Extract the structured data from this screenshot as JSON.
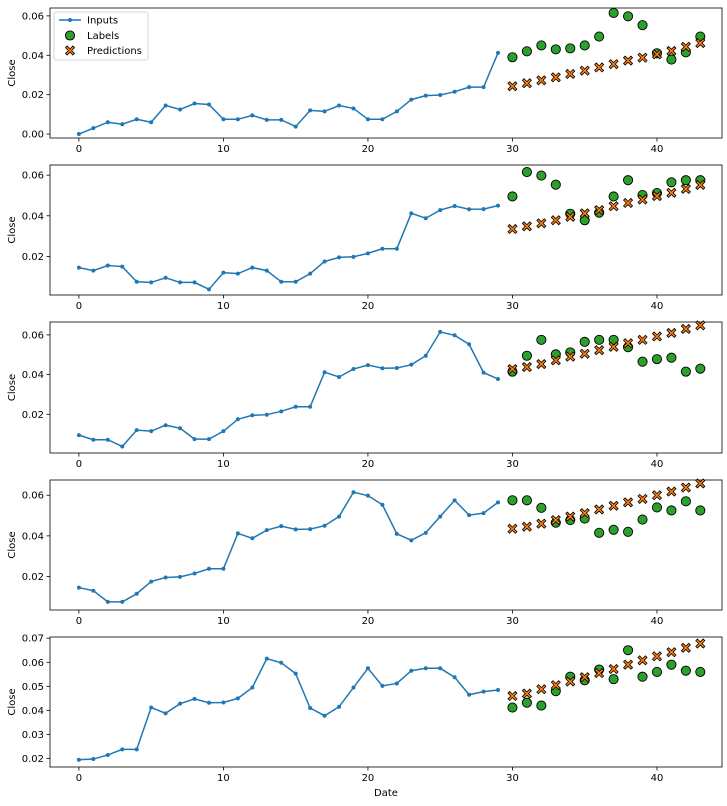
{
  "chart_data": [
    {
      "type": "scatter",
      "xlabel": "",
      "ylabel": "Close",
      "xlim": [
        -2,
        44.5
      ],
      "ylim": [
        -0.002,
        0.064
      ],
      "xticks": [
        0,
        10,
        20,
        30,
        40
      ],
      "yticks": [
        0.0,
        0.02,
        0.04,
        0.06
      ],
      "ytick_labels": [
        "0.00",
        "0.02",
        "0.04",
        "0.06"
      ],
      "legend_placement": "top-left",
      "legend": [
        "Inputs",
        "Labels",
        "Predictions"
      ],
      "series": [
        {
          "name": "Inputs",
          "x": [
            0,
            1,
            2,
            3,
            4,
            5,
            6,
            7,
            8,
            9,
            10,
            11,
            12,
            13,
            14,
            15,
            16,
            17,
            18,
            19,
            20,
            21,
            22,
            23,
            24,
            25,
            26,
            27,
            28,
            29
          ],
          "values": [
            0.0,
            0.003,
            0.006,
            0.005,
            0.0075,
            0.006,
            0.0145,
            0.0125,
            0.0155,
            0.015,
            0.0075,
            0.0075,
            0.0095,
            0.0072,
            0.0072,
            0.0038,
            0.012,
            0.0115,
            0.0145,
            0.013,
            0.0075,
            0.0075,
            0.0115,
            0.0175,
            0.0195,
            0.0198,
            0.0215,
            0.0238,
            0.0238,
            0.0412
          ]
        },
        {
          "name": "Labels",
          "x": [
            30,
            31,
            32,
            33,
            34,
            35,
            36,
            37,
            38,
            39,
            40,
            41,
            42,
            43
          ],
          "values": [
            0.039,
            0.042,
            0.045,
            0.043,
            0.0435,
            0.045,
            0.0495,
            0.0615,
            0.0598,
            0.0553,
            0.041,
            0.0378,
            0.0415,
            0.0495
          ]
        },
        {
          "name": "Predictions",
          "x": [
            30,
            31,
            32,
            33,
            34,
            35,
            36,
            37,
            38,
            39,
            40,
            41,
            42,
            43
          ],
          "values": [
            0.0243,
            0.0258,
            0.0273,
            0.0288,
            0.0305,
            0.0322,
            0.0338,
            0.0355,
            0.0373,
            0.0388,
            0.0405,
            0.0422,
            0.0443,
            0.0462
          ]
        }
      ]
    },
    {
      "type": "scatter",
      "xlabel": "",
      "ylabel": "Close",
      "xlim": [
        -2,
        44.5
      ],
      "ylim": [
        0.001,
        0.065
      ],
      "xticks": [
        0,
        10,
        20,
        30,
        40
      ],
      "yticks": [
        0.02,
        0.04,
        0.06
      ],
      "ytick_labels": [
        "0.02",
        "0.04",
        "0.06"
      ],
      "series": [
        {
          "name": "Inputs",
          "x": [
            0,
            1,
            2,
            3,
            4,
            5,
            6,
            7,
            8,
            9,
            10,
            11,
            12,
            13,
            14,
            15,
            16,
            17,
            18,
            19,
            20,
            21,
            22,
            23,
            24,
            25,
            26,
            27,
            28,
            29
          ],
          "values": [
            0.0145,
            0.013,
            0.0155,
            0.015,
            0.0075,
            0.0072,
            0.0095,
            0.0072,
            0.0072,
            0.0038,
            0.012,
            0.0115,
            0.0145,
            0.013,
            0.0075,
            0.0075,
            0.0115,
            0.0175,
            0.0195,
            0.0198,
            0.0215,
            0.0238,
            0.0238,
            0.0412,
            0.0388,
            0.0428,
            0.0448,
            0.0432,
            0.0433,
            0.045
          ]
        },
        {
          "name": "Labels",
          "x": [
            30,
            31,
            32,
            33,
            34,
            35,
            36,
            37,
            38,
            39,
            40,
            41,
            42,
            43
          ],
          "values": [
            0.0495,
            0.0615,
            0.0598,
            0.0553,
            0.041,
            0.0378,
            0.0415,
            0.0495,
            0.0575,
            0.0502,
            0.0512,
            0.0565,
            0.0575,
            0.0575
          ]
        },
        {
          "name": "Predictions",
          "x": [
            30,
            31,
            32,
            33,
            34,
            35,
            36,
            37,
            38,
            39,
            40,
            41,
            42,
            43
          ],
          "values": [
            0.0335,
            0.0348,
            0.0363,
            0.0378,
            0.0395,
            0.0412,
            0.0428,
            0.0447,
            0.0463,
            0.048,
            0.0497,
            0.0513,
            0.0532,
            0.0552
          ]
        }
      ]
    },
    {
      "type": "scatter",
      "xlabel": "",
      "ylabel": "Close",
      "xlim": [
        -2,
        44.5
      ],
      "ylim": [
        0.0005,
        0.0665
      ],
      "xticks": [
        0,
        10,
        20,
        30,
        40
      ],
      "yticks": [
        0.02,
        0.04,
        0.06
      ],
      "ytick_labels": [
        "0.02",
        "0.04",
        "0.06"
      ],
      "series": [
        {
          "name": "Inputs",
          "x": [
            0,
            1,
            2,
            3,
            4,
            5,
            6,
            7,
            8,
            9,
            10,
            11,
            12,
            13,
            14,
            15,
            16,
            17,
            18,
            19,
            20,
            21,
            22,
            23,
            24,
            25,
            26,
            27,
            28,
            29
          ],
          "values": [
            0.0095,
            0.0072,
            0.0072,
            0.0038,
            0.012,
            0.0115,
            0.0145,
            0.013,
            0.0075,
            0.0075,
            0.0115,
            0.0175,
            0.0195,
            0.0198,
            0.0215,
            0.0238,
            0.0238,
            0.0412,
            0.0388,
            0.0428,
            0.0448,
            0.0432,
            0.0433,
            0.045,
            0.0495,
            0.0615,
            0.0598,
            0.0553,
            0.041,
            0.0378
          ]
        },
        {
          "name": "Labels",
          "x": [
            30,
            31,
            32,
            33,
            34,
            35,
            36,
            37,
            38,
            39,
            40,
            41,
            42,
            43
          ],
          "values": [
            0.0415,
            0.0495,
            0.0575,
            0.0502,
            0.0512,
            0.0565,
            0.0575,
            0.0575,
            0.0538,
            0.0465,
            0.0478,
            0.0485,
            0.0415,
            0.043
          ]
        },
        {
          "name": "Predictions",
          "x": [
            30,
            31,
            32,
            33,
            34,
            35,
            36,
            37,
            38,
            39,
            40,
            41,
            42,
            43
          ],
          "values": [
            0.0428,
            0.0438,
            0.0453,
            0.0472,
            0.049,
            0.0505,
            0.0523,
            0.054,
            0.0558,
            0.0575,
            0.0592,
            0.061,
            0.063,
            0.0648
          ]
        }
      ]
    },
    {
      "type": "scatter",
      "xlabel": "",
      "ylabel": "Close",
      "xlim": [
        -2,
        44.5
      ],
      "ylim": [
        0.0035,
        0.0675
      ],
      "xticks": [
        0,
        10,
        20,
        30,
        40
      ],
      "yticks": [
        0.02,
        0.04,
        0.06
      ],
      "ytick_labels": [
        "0.02",
        "0.04",
        "0.06"
      ],
      "series": [
        {
          "name": "Inputs",
          "x": [
            0,
            1,
            2,
            3,
            4,
            5,
            6,
            7,
            8,
            9,
            10,
            11,
            12,
            13,
            14,
            15,
            16,
            17,
            18,
            19,
            20,
            21,
            22,
            23,
            24,
            25,
            26,
            27,
            28,
            29
          ],
          "values": [
            0.0145,
            0.013,
            0.0075,
            0.0075,
            0.0115,
            0.0175,
            0.0195,
            0.0198,
            0.0215,
            0.0238,
            0.0238,
            0.0412,
            0.0388,
            0.0428,
            0.0448,
            0.0432,
            0.0433,
            0.045,
            0.0495,
            0.0615,
            0.0598,
            0.0553,
            0.041,
            0.0378,
            0.0415,
            0.0495,
            0.0575,
            0.0502,
            0.0512,
            0.0565
          ]
        },
        {
          "name": "Labels",
          "x": [
            30,
            31,
            32,
            33,
            34,
            35,
            36,
            37,
            38,
            39,
            40,
            41,
            42,
            43
          ],
          "values": [
            0.0575,
            0.0575,
            0.0538,
            0.0465,
            0.0478,
            0.0485,
            0.0415,
            0.043,
            0.042,
            0.048,
            0.054,
            0.0525,
            0.057,
            0.0525
          ]
        },
        {
          "name": "Predictions",
          "x": [
            30,
            31,
            32,
            33,
            34,
            35,
            36,
            37,
            38,
            39,
            40,
            41,
            42,
            43
          ],
          "values": [
            0.0435,
            0.0445,
            0.046,
            0.0478,
            0.0495,
            0.0512,
            0.053,
            0.0548,
            0.0565,
            0.0582,
            0.06,
            0.0618,
            0.0638,
            0.0658
          ]
        }
      ]
    },
    {
      "type": "scatter",
      "xlabel": "Date",
      "ylabel": "Close",
      "xlim": [
        -2,
        44.5
      ],
      "ylim": [
        0.0165,
        0.0705
      ],
      "xticks": [
        0,
        10,
        20,
        30,
        40
      ],
      "yticks": [
        0.02,
        0.03,
        0.04,
        0.05,
        0.06,
        0.07
      ],
      "ytick_labels": [
        "0.02",
        "0.03",
        "0.04",
        "0.05",
        "0.06",
        "0.07"
      ],
      "series": [
        {
          "name": "Inputs",
          "x": [
            0,
            1,
            2,
            3,
            4,
            5,
            6,
            7,
            8,
            9,
            10,
            11,
            12,
            13,
            14,
            15,
            16,
            17,
            18,
            19,
            20,
            21,
            22,
            23,
            24,
            25,
            26,
            27,
            28,
            29
          ],
          "values": [
            0.0195,
            0.0198,
            0.0215,
            0.0238,
            0.0238,
            0.0412,
            0.0388,
            0.0428,
            0.0448,
            0.0432,
            0.0433,
            0.045,
            0.0495,
            0.0615,
            0.0598,
            0.0553,
            0.041,
            0.0378,
            0.0415,
            0.0495,
            0.0575,
            0.0502,
            0.0512,
            0.0565,
            0.0575,
            0.0575,
            0.0538,
            0.0465,
            0.0478,
            0.0485
          ]
        },
        {
          "name": "Labels",
          "x": [
            30,
            31,
            32,
            33,
            34,
            35,
            36,
            37,
            38,
            39,
            40,
            41,
            42,
            43
          ],
          "values": [
            0.0412,
            0.0432,
            0.042,
            0.048,
            0.054,
            0.0525,
            0.057,
            0.053,
            0.065,
            0.054,
            0.056,
            0.059,
            0.0565,
            0.056
          ]
        },
        {
          "name": "Predictions",
          "x": [
            30,
            31,
            32,
            33,
            34,
            35,
            36,
            37,
            38,
            39,
            40,
            41,
            42,
            43
          ],
          "values": [
            0.046,
            0.047,
            0.0488,
            0.0505,
            0.052,
            0.0538,
            0.0555,
            0.0572,
            0.059,
            0.0608,
            0.0625,
            0.0642,
            0.066,
            0.0678
          ]
        }
      ]
    }
  ],
  "colors": {
    "inputs": "#1f77b4",
    "labels": "#2ca02c",
    "predictions": "#ff7f0e",
    "edge": "#000000",
    "axis": "#000000"
  }
}
